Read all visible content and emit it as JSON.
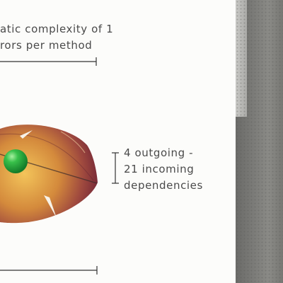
{
  "annotations": {
    "top": {
      "line1": "atic complexity of 1",
      "line2": "rors per method"
    },
    "right": {
      "line1": "4 outgoing -",
      "line2": "21 incoming",
      "line3": "dependencies"
    }
  },
  "colors": {
    "shape_outer": "#7a2d3b",
    "shape_inner": "#e8a94a",
    "sphere": "#2db24a",
    "text": "#4a4a4a"
  }
}
